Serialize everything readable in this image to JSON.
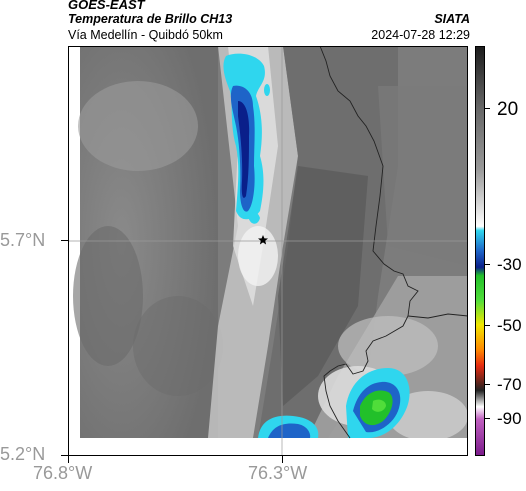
{
  "header": {
    "satellite": "GOES-EAST",
    "product": "Temperatura de Brillo CH13",
    "route": "Vía Medellín - Quibdó 50km",
    "source": "SIATA",
    "datetime": "2024-07-28 12:29"
  },
  "axes": {
    "lat_labels": [
      "5.7°N",
      "5.2°N"
    ],
    "lon_labels": [
      "76.8°W",
      "76.3°W"
    ]
  },
  "colorbar": {
    "ticks": [
      "20",
      "-30",
      "-50",
      "-70",
      "-90"
    ]
  },
  "map": {
    "marker": "star-icon",
    "colors": {
      "cold_cloud_dark": "#0a1f8a",
      "cold_cloud_mid": "#1e64c8",
      "cold_cloud_edge": "#2fd6ee",
      "very_cold": "#22c02a",
      "border_line": "#222222"
    }
  }
}
